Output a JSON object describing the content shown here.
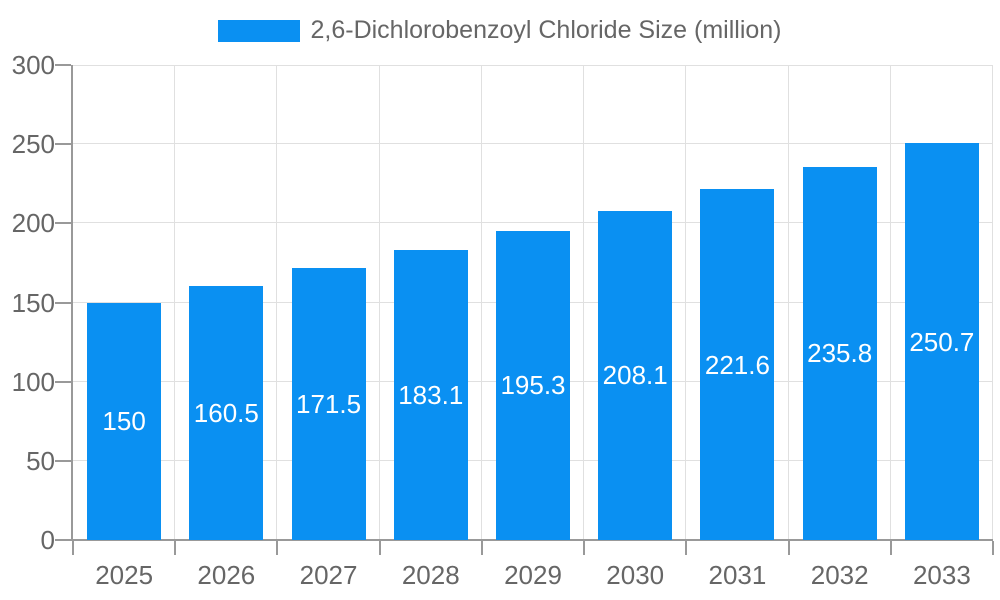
{
  "chart_data": {
    "type": "bar",
    "title": "2,6-Dichlorobenzoyl Chloride Size (million)",
    "categories": [
      "2025",
      "2026",
      "2027",
      "2028",
      "2029",
      "2030",
      "2031",
      "2032",
      "2033"
    ],
    "series": [
      {
        "name": "2,6-Dichlorobenzoyl Chloride Size (million)",
        "values": [
          150,
          160.5,
          171.5,
          183.1,
          195.3,
          208.1,
          221.6,
          235.8,
          250.7
        ]
      }
    ],
    "xlabel": "",
    "ylabel": "",
    "ylim": [
      0,
      300
    ],
    "yticks": [
      0,
      50,
      100,
      150,
      200,
      250,
      300
    ],
    "grid": true,
    "legend_position": "top",
    "value_label_position": "inside-center"
  },
  "colors": {
    "bar": "#0a90f2",
    "axis_line": "#999999",
    "tick": "#999999",
    "gridline": "#e0e0e0",
    "axis_label_text": "#666666",
    "legend_text": "#666666",
    "value_label_text": "#ffffff",
    "background": "#ffffff"
  }
}
